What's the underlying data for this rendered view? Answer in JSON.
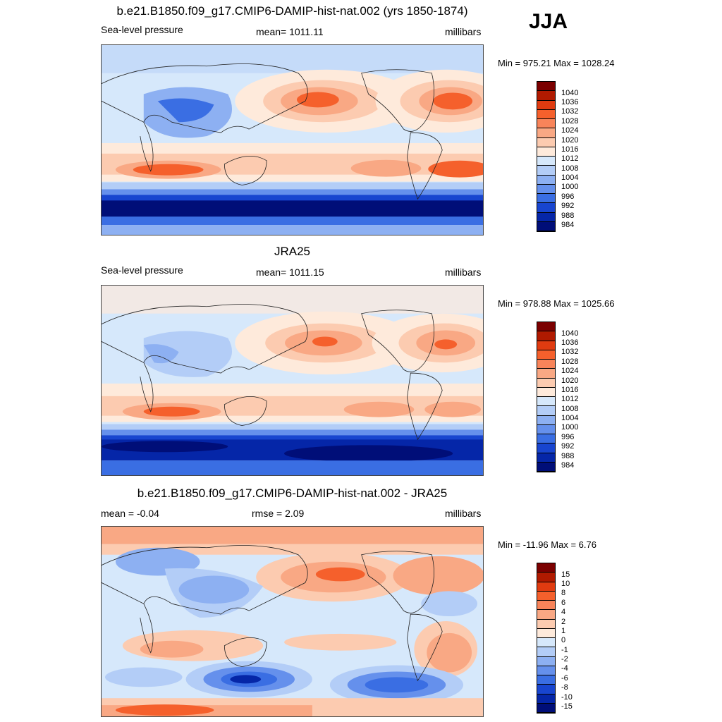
{
  "season": "JJA",
  "panels": [
    {
      "title": "b.e21.B1850.f09_g17.CMIP6-DAMIP-hist-nat.002 (yrs 1850-1874)",
      "left_label": "Sea-level pressure",
      "center_label": "mean= 1011.11",
      "right_label": "millibars",
      "minmax": "Min = 975.21 Max = 1028.24",
      "colorbar": {
        "labels": [
          "1040",
          "1036",
          "1032",
          "1028",
          "1024",
          "1020",
          "1016",
          "1012",
          "1008",
          "1004",
          "1000",
          "996",
          "992",
          "988",
          "984"
        ],
        "colors": [
          "#7b0000",
          "#b01a00",
          "#e03b10",
          "#f5602c",
          "#f8845a",
          "#f9a884",
          "#fccbb0",
          "#feeadb",
          "#d6e8fb",
          "#b3cdf7",
          "#8db0f2",
          "#6590ec",
          "#3a6ee3",
          "#1845cf",
          "#0526a8",
          "#000e78"
        ]
      }
    },
    {
      "title": "JRA25",
      "left_label": "Sea-level pressure",
      "center_label": "mean= 1011.15",
      "right_label": "millibars",
      "minmax": "Min = 978.88 Max = 1025.66",
      "colorbar": {
        "labels": [
          "1040",
          "1036",
          "1032",
          "1028",
          "1024",
          "1020",
          "1016",
          "1012",
          "1008",
          "1004",
          "1000",
          "996",
          "992",
          "988",
          "984"
        ],
        "colors": [
          "#7b0000",
          "#b01a00",
          "#e03b10",
          "#f5602c",
          "#f8845a",
          "#f9a884",
          "#fccbb0",
          "#feeadb",
          "#d6e8fb",
          "#b3cdf7",
          "#8db0f2",
          "#6590ec",
          "#3a6ee3",
          "#1845cf",
          "#0526a8",
          "#000e78"
        ]
      }
    },
    {
      "title": "b.e21.B1850.f09_g17.CMIP6-DAMIP-hist-nat.002 - JRA25",
      "left_label": "mean =  -0.04",
      "center_label": "rmse =   2.09",
      "right_label": "millibars",
      "minmax": "Min = -11.96 Max =   6.76",
      "colorbar": {
        "labels": [
          "15",
          "10",
          "8",
          "6",
          "4",
          "2",
          "1",
          "0",
          "-1",
          "-2",
          "-4",
          "-6",
          "-8",
          "-10",
          "-15"
        ],
        "colors": [
          "#7b0000",
          "#b01a00",
          "#e03b10",
          "#f5602c",
          "#f8845a",
          "#f9a884",
          "#fccbb0",
          "#feeadb",
          "#d6e8fb",
          "#b3cdf7",
          "#8db0f2",
          "#6590ec",
          "#3a6ee3",
          "#1845cf",
          "#0526a8",
          "#000e78"
        ]
      }
    }
  ]
}
